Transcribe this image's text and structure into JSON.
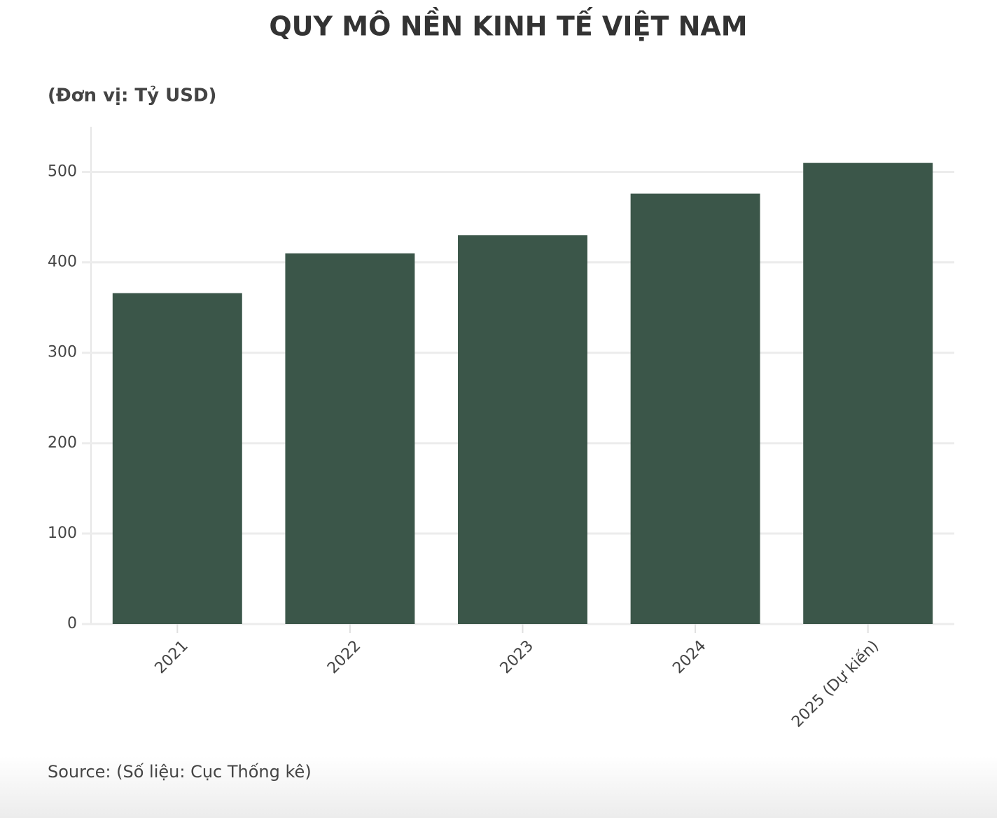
{
  "chart_data": {
    "type": "bar",
    "title": "QUY MÔ NỀN KINH TẾ VIỆT NAM",
    "subtitle": "(Đơn vị: Tỷ USD)",
    "source": "Source: (Số liệu: Cục Thống kê)",
    "categories": [
      "2021",
      "2022",
      "2023",
      "2024",
      "2025 (Dự kiến)"
    ],
    "values": [
      366,
      410,
      430,
      476,
      510
    ],
    "color": "#3b5649",
    "ylim": [
      0,
      550
    ],
    "yticks": [
      0,
      100,
      200,
      300,
      400,
      500
    ],
    "grid": true
  }
}
